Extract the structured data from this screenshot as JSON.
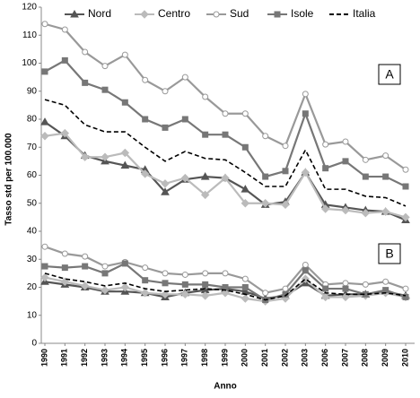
{
  "chart_data": {
    "type": "line",
    "y_label": "Tasso std per 100.000",
    "x_label": "Anno",
    "categories": [
      "1990",
      "1991",
      "1992",
      "1993",
      "1994",
      "1995",
      "1996",
      "1997",
      "1998",
      "1999",
      "2000",
      "2001",
      "2002",
      "2003",
      "2006",
      "2007",
      "2008",
      "2009",
      "2010"
    ],
    "ylim": [
      0,
      120
    ],
    "yticks": [
      0,
      10,
      20,
      30,
      40,
      50,
      60,
      70,
      80,
      90,
      100,
      110,
      120
    ],
    "annotations": [
      {
        "text": "A",
        "y": 96
      },
      {
        "text": "B",
        "y": 32
      }
    ],
    "series": [
      {
        "name": "Nord",
        "color": "#555555",
        "marker": "triangle",
        "dash": false,
        "values": [
          79,
          74,
          67,
          65,
          63.5,
          62,
          54,
          58.5,
          59.5,
          59,
          55,
          49.5,
          50.5,
          61,
          49.5,
          48.5,
          47.5,
          47,
          44
        ],
        "values_b": [
          22,
          21,
          20,
          18.5,
          18.5,
          18,
          16.5,
          18,
          19,
          19.5,
          18.5,
          16,
          17,
          21.5,
          17,
          17.5,
          17.5,
          18.5,
          17
        ]
      },
      {
        "name": "Centro",
        "color": "#bbbbbb",
        "marker": "diamond",
        "dash": false,
        "values": [
          74,
          75,
          66.5,
          66.5,
          68,
          60.5,
          57,
          59,
          53,
          59,
          50,
          50,
          49.5,
          61,
          48,
          47.5,
          46.5,
          47,
          45
        ],
        "values_b": [
          23.5,
          22,
          20.5,
          19,
          20,
          18,
          17.5,
          17.5,
          17,
          18,
          16,
          15,
          16,
          23,
          16.5,
          16.5,
          17,
          18,
          16.5
        ]
      },
      {
        "name": "Sud",
        "color": "#999999",
        "marker": "circle",
        "dash": false,
        "values": [
          114,
          112,
          104,
          99,
          103,
          94,
          90,
          95,
          88,
          82,
          82,
          74,
          70.5,
          89,
          71,
          72,
          65.5,
          67,
          62
        ],
        "values_b": [
          34.5,
          32,
          31,
          27.5,
          29,
          27,
          25,
          24.5,
          25,
          25,
          23,
          18,
          19.5,
          28,
          21,
          21.5,
          21,
          22,
          19.5
        ]
      },
      {
        "name": "Isole",
        "color": "#777777",
        "marker": "square",
        "dash": false,
        "values": [
          97,
          101,
          93,
          90.5,
          86,
          80,
          77,
          80,
          74.5,
          74.5,
          70,
          59.5,
          61.5,
          82,
          62.5,
          65,
          59.5,
          59.5,
          56
        ],
        "values_b": [
          27.5,
          27,
          27.5,
          25,
          28.5,
          22.5,
          21.5,
          21,
          21,
          20,
          20,
          15.5,
          17.5,
          26,
          19.5,
          19.5,
          17.5,
          19,
          16.5
        ]
      },
      {
        "name": "Italia",
        "color": "#000000",
        "marker": "none",
        "dash": true,
        "values": [
          87,
          85,
          78,
          75.5,
          75.5,
          70,
          65,
          68.5,
          66,
          65.5,
          61,
          56,
          56,
          69,
          55,
          55,
          52.5,
          52,
          49
        ],
        "values_b": [
          25,
          23,
          22,
          20.5,
          21.5,
          19.5,
          18.5,
          19,
          19.5,
          19,
          17.5,
          15.5,
          17,
          23,
          18,
          17.5,
          17.5,
          18,
          17
        ]
      }
    ]
  }
}
